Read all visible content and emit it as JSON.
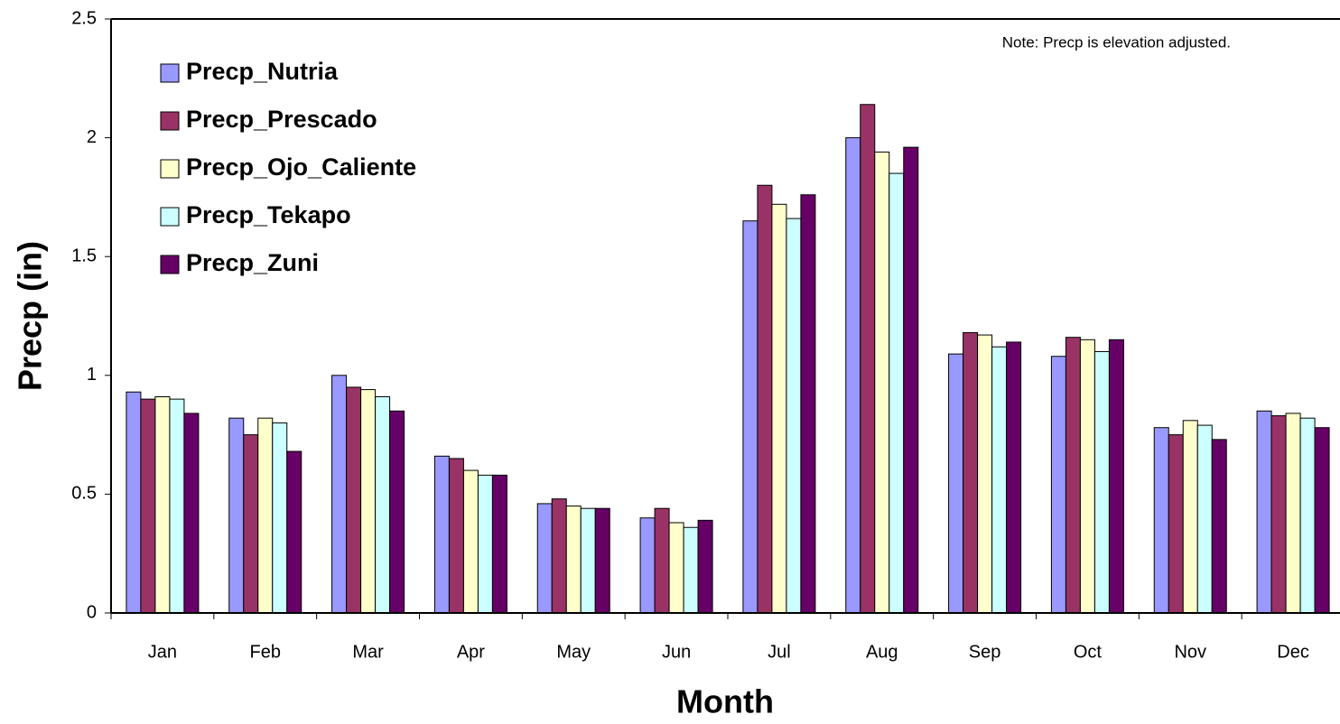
{
  "chart_data": {
    "type": "bar",
    "note": "Note: Precp is elevation adjusted.",
    "x_label": "Month",
    "y_label": "Precp (in)",
    "categories": [
      "Jan",
      "Feb",
      "Mar",
      "Apr",
      "May",
      "Jun",
      "Jul",
      "Aug",
      "Sep",
      "Oct",
      "Nov",
      "Dec"
    ],
    "series": [
      {
        "name": "Precp_Nutria",
        "color": "#9999ff",
        "values": [
          0.93,
          0.82,
          1.0,
          0.66,
          0.46,
          0.4,
          1.65,
          2.0,
          1.09,
          1.08,
          0.78,
          0.85
        ]
      },
      {
        "name": "Precp_Prescado",
        "color": "#993366",
        "values": [
          0.9,
          0.75,
          0.95,
          0.65,
          0.48,
          0.44,
          1.8,
          2.14,
          1.18,
          1.16,
          0.75,
          0.83
        ]
      },
      {
        "name": "Precp_Ojo_Caliente",
        "color": "#ffffcc",
        "values": [
          0.91,
          0.82,
          0.94,
          0.6,
          0.45,
          0.38,
          1.72,
          1.94,
          1.17,
          1.15,
          0.81,
          0.84
        ]
      },
      {
        "name": "Precp_Tekapo",
        "color": "#ccffff",
        "values": [
          0.9,
          0.8,
          0.91,
          0.58,
          0.44,
          0.36,
          1.66,
          1.85,
          1.12,
          1.1,
          0.79,
          0.82
        ]
      },
      {
        "name": "Precp_Zuni",
        "color": "#660066",
        "values": [
          0.84,
          0.68,
          0.85,
          0.58,
          0.44,
          0.39,
          1.76,
          1.96,
          1.14,
          1.15,
          0.73,
          0.78
        ]
      }
    ],
    "ylim": [
      0,
      2.5
    ],
    "yticks": [
      0,
      0.5,
      1,
      1.5,
      2,
      2.5
    ],
    "grid": false,
    "legend": "upper-left"
  }
}
